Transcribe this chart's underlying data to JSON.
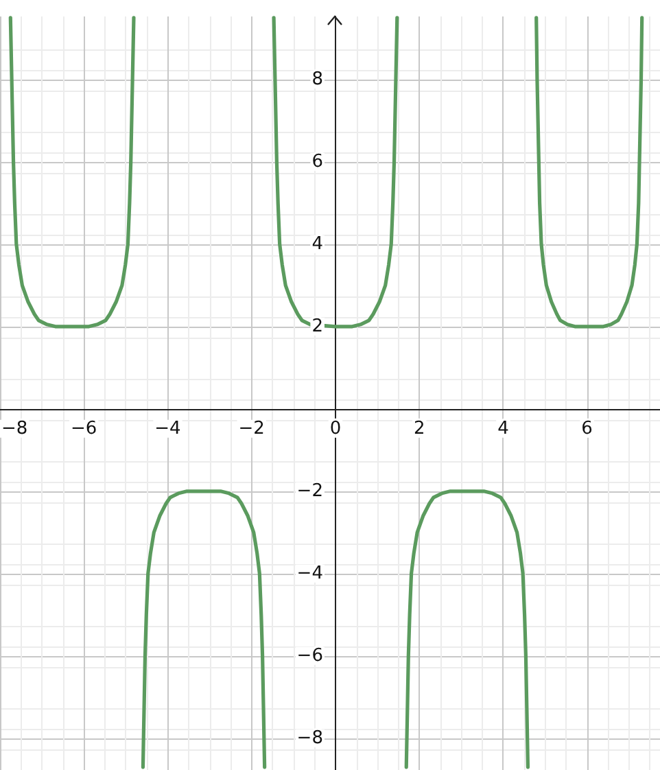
{
  "chart_data": {
    "type": "line",
    "xlim": [
      -8,
      7.74
    ],
    "ylim": [
      -8.77,
      9.53
    ],
    "xticks": [
      -8,
      -6,
      -4,
      -2,
      0,
      2,
      4,
      6
    ],
    "yticks": [
      -8,
      -6,
      -4,
      -2,
      2,
      4,
      6,
      8
    ],
    "grid": true,
    "marker": "none",
    "line_style": "solid",
    "series": [
      {
        "color": "#5b9b5e",
        "x": [
          -7.75,
          -7.72,
          -7.68,
          -7.65,
          -7.61,
          -7.55,
          -7.47,
          -7.33,
          -7.18,
          -7.08,
          -6.88,
          -6.68,
          -6.28,
          -5.88,
          -5.68,
          -5.48,
          -5.38,
          -5.23,
          -5.09,
          -5.01,
          -4.95,
          -4.91,
          -4.88,
          -4.84,
          -4.81
        ],
        "values": [
          9.5,
          8,
          6,
          5,
          4,
          3.5,
          3,
          2.6,
          2.3,
          2.15,
          2.05,
          2,
          2,
          2,
          2.05,
          2.15,
          2.3,
          2.6,
          3,
          3.5,
          4,
          5,
          6,
          8,
          9.5
        ]
      },
      {
        "color": "#5b9b5e",
        "x": [
          -4.59,
          -4.54,
          -4.51,
          -4.47,
          -4.41,
          -4.33,
          -4.19,
          -4.04,
          -3.94,
          -3.74,
          -3.54,
          -3.14,
          -2.74,
          -2.54,
          -2.34,
          -2.24,
          -2.09,
          -1.95,
          -1.87,
          -1.81,
          -1.77,
          -1.74,
          -1.69
        ],
        "values": [
          -8.7,
          -6,
          -5,
          -4,
          -3.5,
          -3,
          -2.6,
          -2.3,
          -2.15,
          -2.05,
          -2,
          -2,
          -2,
          -2.05,
          -2.15,
          -2.3,
          -2.6,
          -3,
          -3.5,
          -4,
          -5,
          -6,
          -8.7
        ]
      },
      {
        "color": "#5b9b5e",
        "x": [
          -1.47,
          -1.44,
          -1.4,
          -1.37,
          -1.33,
          -1.27,
          -1.19,
          -1.05,
          -0.9,
          -0.8,
          -0.6,
          0,
          0.4,
          0.6,
          0.8,
          0.9,
          1.05,
          1.19,
          1.27,
          1.33,
          1.37,
          1.4,
          1.44,
          1.47
        ],
        "values": [
          9.5,
          8,
          6,
          5,
          4,
          3.5,
          3,
          2.6,
          2.3,
          2.15,
          2.05,
          2,
          2,
          2.05,
          2.15,
          2.3,
          2.6,
          3,
          3.5,
          4,
          5,
          6,
          8,
          9.5
        ]
      },
      {
        "color": "#5b9b5e",
        "x": [
          1.69,
          1.74,
          1.77,
          1.81,
          1.87,
          1.95,
          2.09,
          2.24,
          2.34,
          2.54,
          2.74,
          3.14,
          3.54,
          3.74,
          3.94,
          4.04,
          4.19,
          4.33,
          4.41,
          4.47,
          4.51,
          4.54,
          4.59
        ],
        "values": [
          -8.7,
          -6,
          -5,
          -4,
          -3.5,
          -3,
          -2.6,
          -2.3,
          -2.15,
          -2.05,
          -2,
          -2,
          -2,
          -2.05,
          -2.15,
          -2.3,
          -2.6,
          -3,
          -3.5,
          -4,
          -5,
          -6,
          -8.7
        ]
      },
      {
        "color": "#5b9b5e",
        "x": [
          4.79,
          4.81,
          4.85,
          4.87,
          4.91,
          4.96,
          5.03,
          5.15,
          5.28,
          5.36,
          5.53,
          5.71,
          6.05,
          6.39,
          6.57,
          6.74,
          6.82,
          6.95,
          7.07,
          7.14,
          7.19,
          7.23,
          7.25,
          7.29,
          7.31
        ],
        "values": [
          9.5,
          8,
          6,
          5,
          4,
          3.5,
          3,
          2.6,
          2.3,
          2.15,
          2.05,
          2,
          2,
          2,
          2.05,
          2.15,
          2.3,
          2.6,
          3,
          3.5,
          4,
          5,
          6,
          8,
          9.5
        ]
      }
    ]
  }
}
